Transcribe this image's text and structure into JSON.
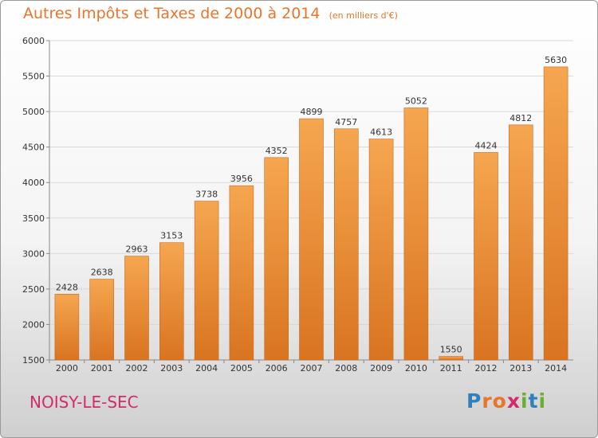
{
  "header": {
    "title": "Autres Impôts et Taxes de 2000 à 2014",
    "unit": "(en milliers d'€)"
  },
  "footer": {
    "city": "NOISY-LE-SEC",
    "logo": [
      "P",
      "r",
      "o",
      "x",
      "i",
      "t",
      "i"
    ],
    "logo_colors": [
      "#2f7fc1",
      "#e8752a",
      "#e8752a",
      "#d52a6a",
      "#6cae2e",
      "#2f7fc1",
      "#6cae2e"
    ]
  },
  "colors": {
    "bar_top": "#f6a650",
    "bar_bottom": "#d97420",
    "bar_edge": "#c96a1e",
    "title": "#e8752a",
    "city": "#d52a6a"
  },
  "chart_data": {
    "type": "bar",
    "title": "Autres Impôts et Taxes de 2000 à 2014",
    "ylabel": "",
    "xlabel": "",
    "categories": [
      "2000",
      "2001",
      "2002",
      "2003",
      "2004",
      "2005",
      "2006",
      "2007",
      "2008",
      "2009",
      "2010",
      "2011",
      "2012",
      "2013",
      "2014"
    ],
    "values": [
      2428,
      2638,
      2963,
      3153,
      3738,
      3956,
      4352,
      4899,
      4757,
      4613,
      5052,
      1550,
      4424,
      4812,
      5630
    ],
    "ylim": [
      1500,
      6000
    ],
    "yticks": [
      1500,
      2000,
      2500,
      3000,
      3500,
      4000,
      4500,
      5000,
      5500,
      6000
    ],
    "grid": true
  }
}
